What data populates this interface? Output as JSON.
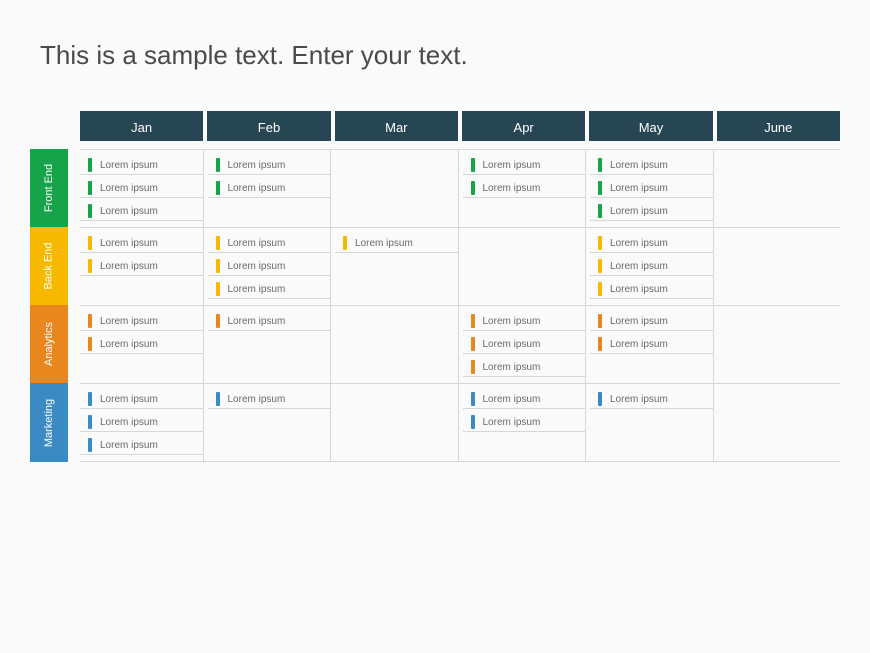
{
  "title": "This is a sample text. Enter your text.",
  "months": [
    "Jan",
    "Feb",
    "Mar",
    "Apr",
    "May",
    "June"
  ],
  "header_bg": "#274653",
  "header_text_color": "#ffffff",
  "grid_line_color": "#d7d7d7",
  "tracks": [
    {
      "name": "Front End",
      "color": "#17a34a",
      "tick_color": "#17a34a",
      "columns": [
        [
          "Lorem ipsum",
          "Lorem ipsum",
          "Lorem ipsum"
        ],
        [
          "Lorem ipsum",
          "Lorem ipsum"
        ],
        [],
        [
          "Lorem ipsum",
          "Lorem ipsum"
        ],
        [
          "Lorem ipsum",
          "Lorem ipsum",
          "Lorem ipsum"
        ],
        []
      ]
    },
    {
      "name": "Back End",
      "color": "#f6b900",
      "tick_color": "#f6b900",
      "columns": [
        [
          "Lorem ipsum",
          "Lorem ipsum"
        ],
        [
          "Lorem ipsum",
          "Lorem ipsum",
          "Lorem ipsum"
        ],
        [
          "Lorem ipsum"
        ],
        [],
        [
          "Lorem ipsum",
          "Lorem ipsum",
          "Lorem ipsum"
        ],
        []
      ]
    },
    {
      "name": "Analytics",
      "color": "#e8871e",
      "tick_color": "#e8871e",
      "columns": [
        [
          "Lorem ipsum",
          "Lorem ipsum"
        ],
        [
          "Lorem ipsum"
        ],
        [],
        [
          "Lorem ipsum",
          "Lorem ipsum",
          "Lorem ipsum"
        ],
        [
          "Lorem ipsum",
          "Lorem ipsum"
        ],
        []
      ]
    },
    {
      "name": "Marketing",
      "color": "#3b8ac4",
      "tick_color": "#3b8ac4",
      "columns": [
        [
          "Lorem ipsum",
          "Lorem ipsum",
          "Lorem ipsum"
        ],
        [
          "Lorem ipsum"
        ],
        [],
        [
          "Lorem ipsum",
          "Lorem ipsum"
        ],
        [
          "Lorem ipsum"
        ],
        []
      ]
    }
  ]
}
